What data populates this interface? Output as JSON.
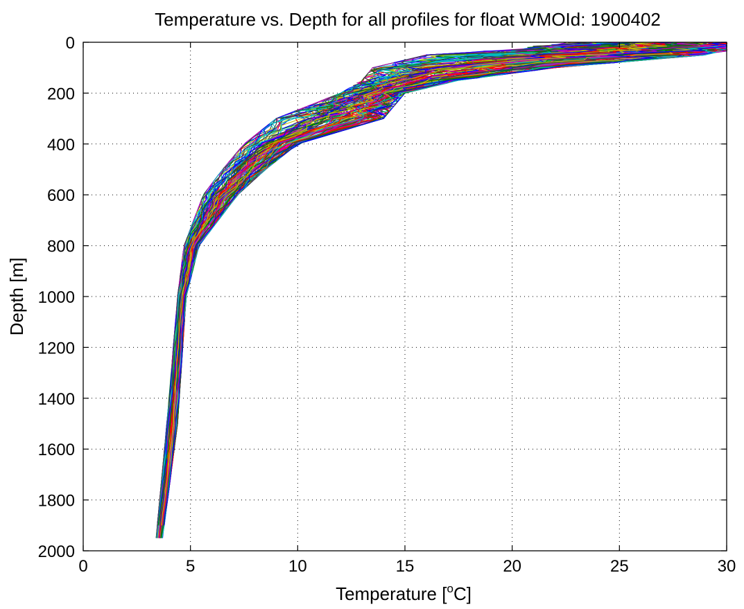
{
  "chart_data": {
    "type": "line",
    "title": "Temperature vs. Depth for all profiles for float WMOId: 1900402",
    "xlabel": "Temperature [",
    "xlabel_sup": "o",
    "xlabel_tail": "C]",
    "ylabel": "Depth [m]",
    "xlim": [
      0,
      30
    ],
    "ylim": [
      0,
      2000
    ],
    "y_reversed": true,
    "xticks": [
      0,
      5,
      10,
      15,
      20,
      25,
      30
    ],
    "yticks": [
      0,
      200,
      400,
      600,
      800,
      1000,
      1200,
      1400,
      1600,
      1800,
      2000
    ],
    "grid": true,
    "grid_style": "dotted",
    "series_count_approx": 120,
    "series_colors": [
      "#0000ff",
      "#008000",
      "#ff0000",
      "#00bfbf",
      "#bf00bf",
      "#bfbf00",
      "#404040"
    ],
    "representative_profile": {
      "depth": [
        0,
        30,
        50,
        70,
        100,
        150,
        200,
        250,
        300,
        350,
        400,
        450,
        500,
        550,
        600,
        700,
        800,
        900,
        1000,
        1200,
        1400,
        1600,
        1800,
        1950
      ],
      "temperature": [
        29.5,
        28.5,
        24.0,
        18.0,
        16.0,
        14.5,
        13.5,
        12.5,
        10.5,
        9.5,
        8.8,
        8.0,
        7.2,
        6.6,
        6.1,
        5.6,
        5.0,
        4.7,
        4.6,
        4.5,
        4.3,
        4.1,
        3.9,
        3.6
      ]
    },
    "profile_spread": {
      "depth": [
        0,
        30,
        50,
        100,
        150,
        200,
        300,
        400,
        500,
        600,
        800,
        1000,
        1500,
        1950
      ],
      "temp_min": [
        23.0,
        20.0,
        16.0,
        13.5,
        13.0,
        12.0,
        9.0,
        7.5,
        6.5,
        5.6,
        4.7,
        4.4,
        3.9,
        3.4
      ],
      "temp_max": [
        30.0,
        30.0,
        29.0,
        22.0,
        17.5,
        15.0,
        14.0,
        10.0,
        8.5,
        7.2,
        5.4,
        4.8,
        4.4,
        3.7
      ]
    }
  }
}
